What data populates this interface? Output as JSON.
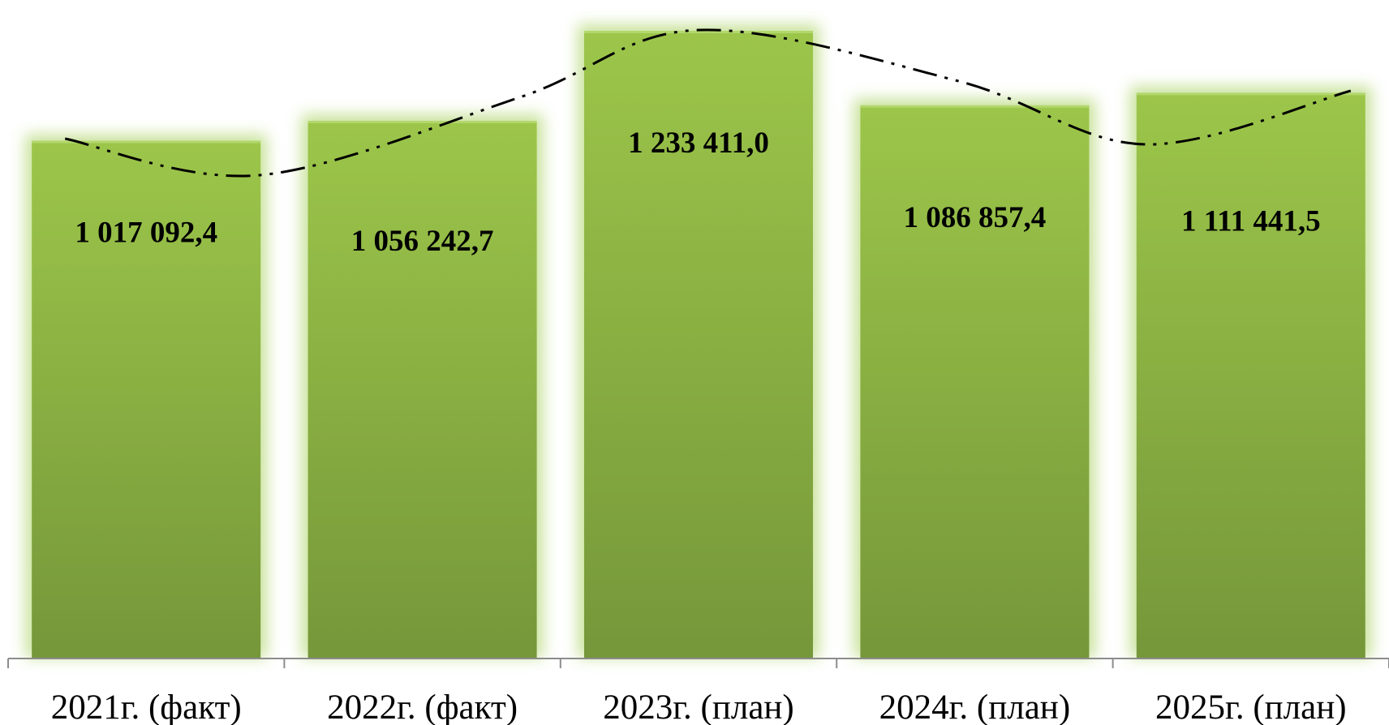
{
  "chart_data": {
    "type": "bar",
    "categories": [
      "2021г. (факт)",
      "2022г. (факт)",
      "2023г. (план)",
      "2024г. (план)",
      "2025г. (план)"
    ],
    "values": [
      1017092.4,
      1056242.7,
      1233411.0,
      1086857.4,
      1111441.5
    ],
    "value_labels": [
      "1 017 092,4",
      "1 056 242,7",
      "1 233 411,0",
      "1 086 857,4",
      "1 111 441,5"
    ],
    "title": "",
    "xlabel": "",
    "ylabel": "",
    "ylim": [
      0,
      1250000
    ],
    "grid": false,
    "legend": "none",
    "has_trendline": true,
    "colors": {
      "bar_light": "#9cc64a",
      "bar_dark": "#76973a",
      "bar_glow": "#b7d97a",
      "trend": "#000000",
      "axis": "#8c8c8c"
    }
  }
}
